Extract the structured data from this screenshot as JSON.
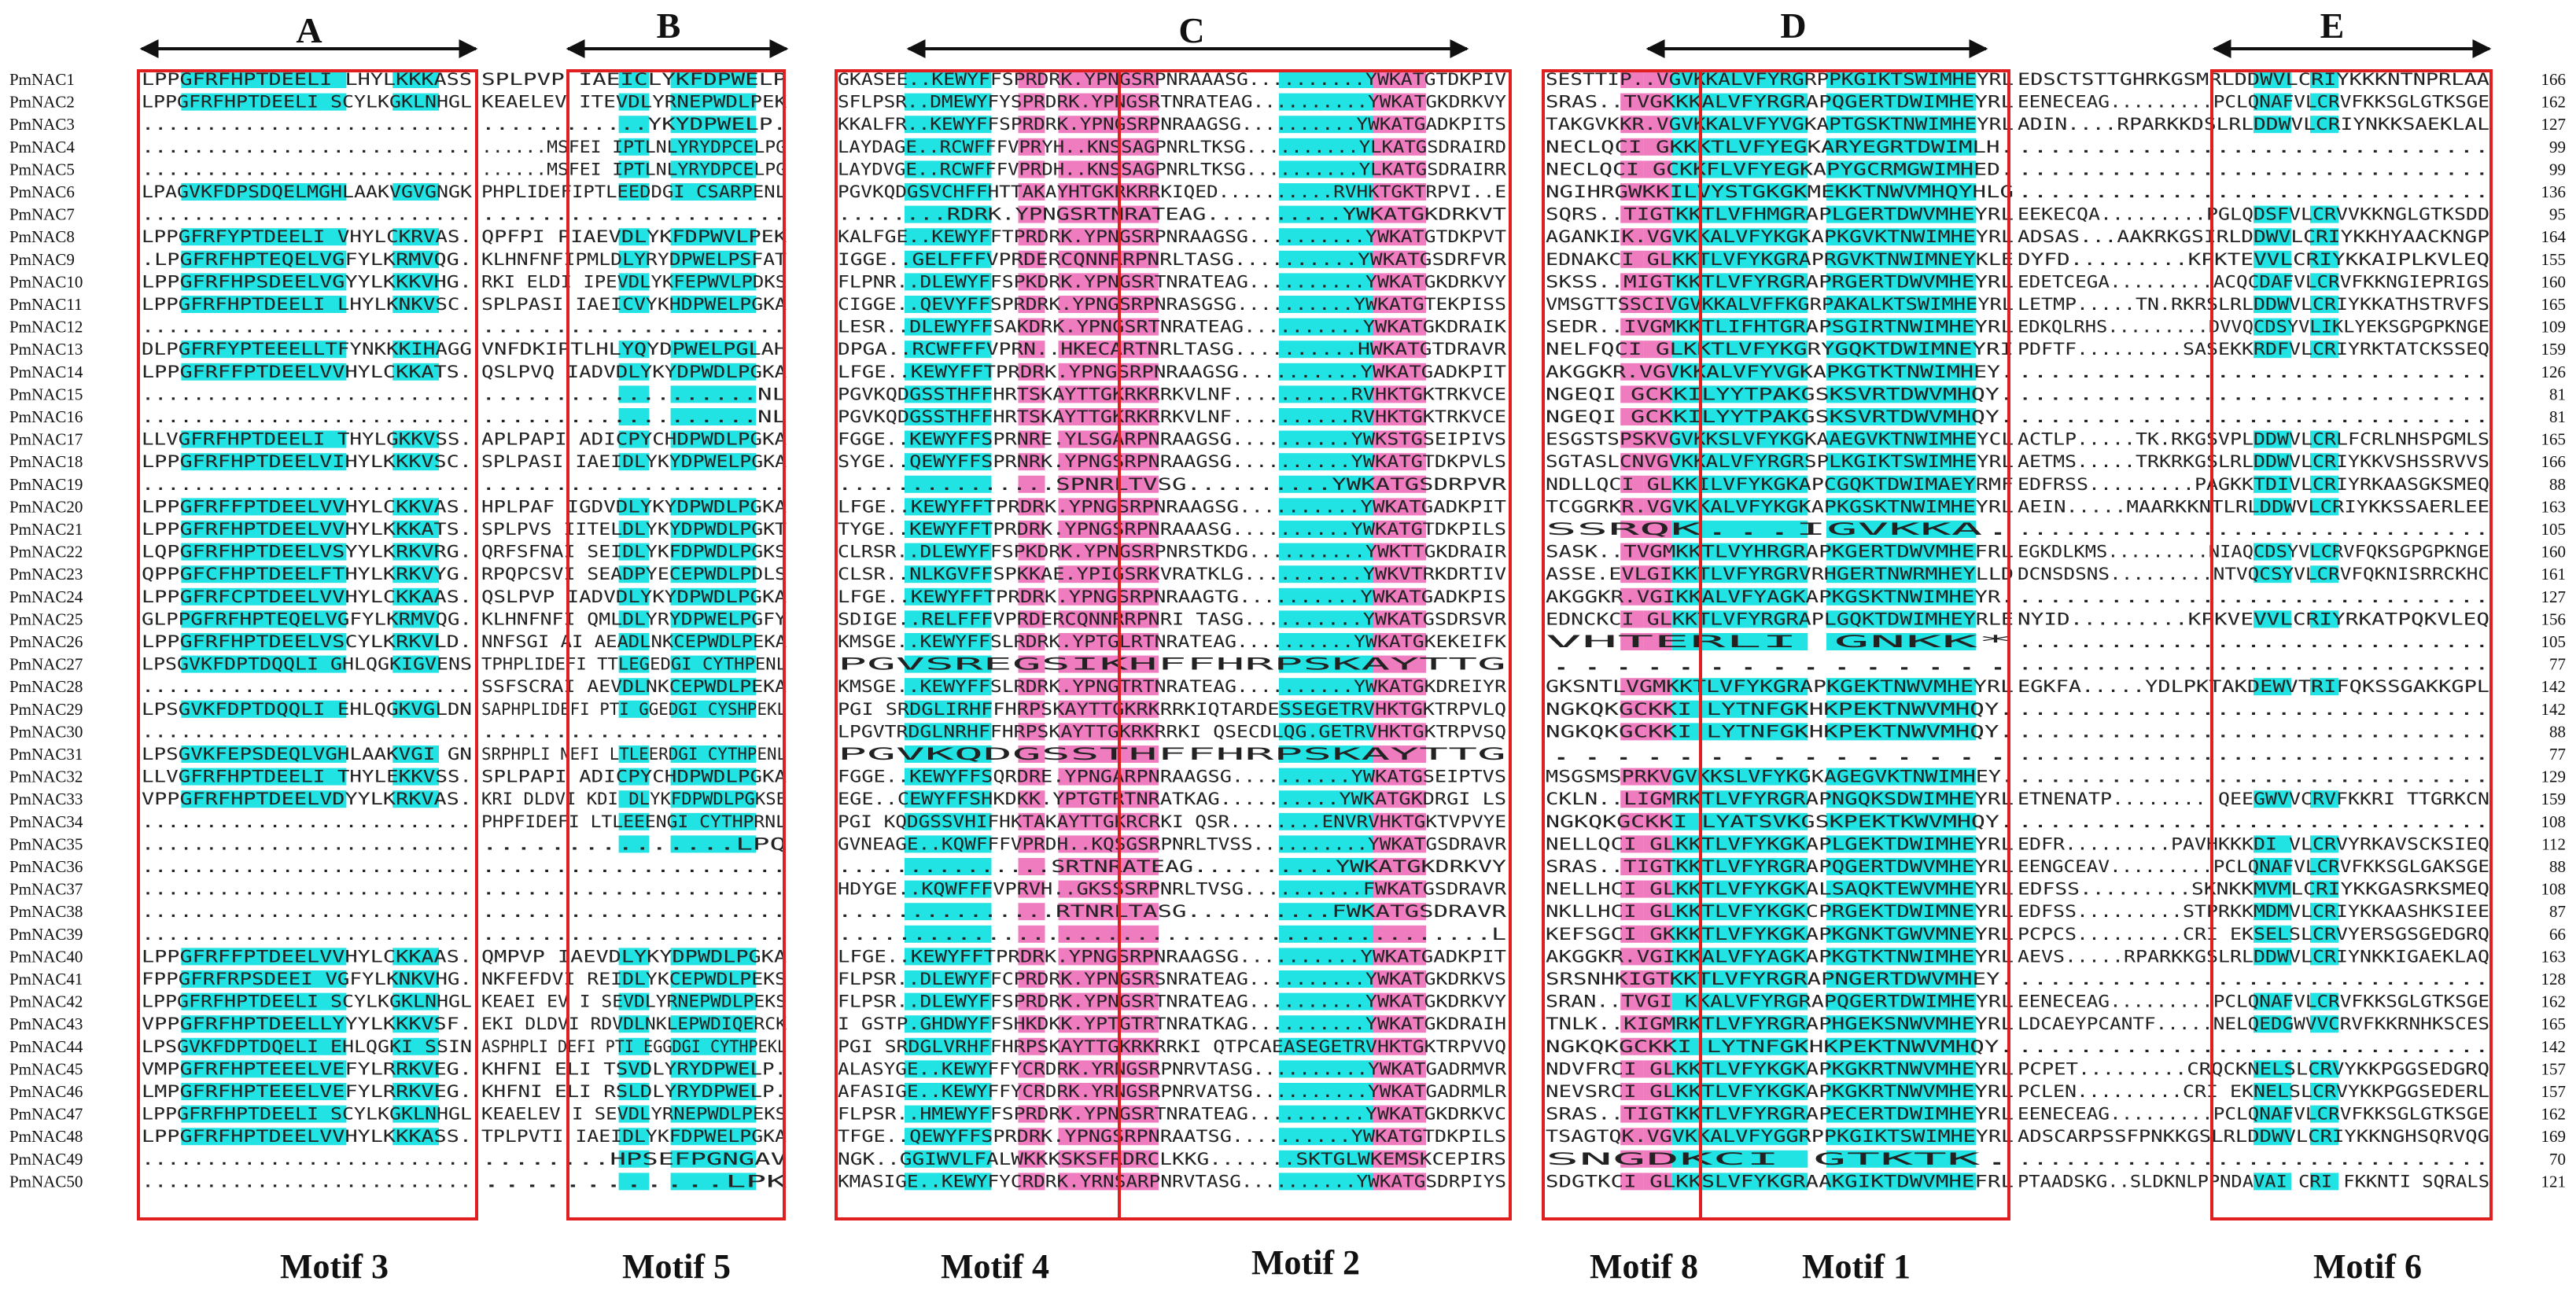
{
  "figure": {
    "colors": {
      "cyan": "#22e3e3",
      "pink": "#f07cc0",
      "box": "#e02020"
    },
    "regions": [
      {
        "id": "A",
        "label": "A"
      },
      {
        "id": "B",
        "label": "B"
      },
      {
        "id": "C",
        "label": "C"
      },
      {
        "id": "D",
        "label": "D"
      },
      {
        "id": "E",
        "label": "E"
      }
    ],
    "motifs": [
      {
        "id": "m3",
        "label": "Motif 3"
      },
      {
        "id": "m5",
        "label": "Motif 5"
      },
      {
        "id": "m4",
        "label": "Motif 4"
      },
      {
        "id": "m2",
        "label": "Motif 2"
      },
      {
        "id": "m8",
        "label": "Motif 8"
      },
      {
        "id": "m1",
        "label": "Motif 1"
      },
      {
        "id": "m6",
        "label": "Motif 6"
      }
    ],
    "sequences": [
      {
        "name": "PmNAC1",
        "len": "166",
        "a": "LPPGFRFHPTDEELI LHYLKKKASS",
        "b": "SPLPVP IAEICLYKFDPWELP",
        "c": "GKASEE..KEWYFFSPRDRK.YPNGSRPNRAAASG..........YWKATGTDKPIV",
        "d": "SESTTIP..VGVKKALVFYRGRPPKGIKTSWIMHEYRL",
        "e": "EDSCTSTTGHRKGSMRLDDWVLCRIYKKKNTNPRLAA"
      },
      {
        "name": "PmNAC2",
        "len": "162",
        "a": "LPPGFRFHPTDEELI SCYLKGKLNHGL",
        "b": "KEAELEV ITEVDLYRNEPWDLPEK",
        "c": "SFLPSR..DMEWYFYSPRDRK.YPNGSRTNRATEAG..........YWKATGKDRKVY",
        "d": "SRAS..TVGKKKALVFYRGRAPQGERTDWIMHEYRL",
        "e": "EENECEAG.........PCLQNAFVLCRVFKKSGLGTKSGE"
      },
      {
        "name": "PmNAC3",
        "len": "127",
        "a": "..........................",
        "b": "............YKYDPWELP.",
        "c": "KKALFR..KEWYFFSPRDRK.YPNGSRPNRAAGSG..........YWKATGADKPITS",
        "d": "TAKGVKKR.VGVKKALVFYVGKAPTGSKTNWIMHEYRL",
        "e": "ADIN....RPARKKDSLRLDDWVLCRIYNKKSAEKLAL"
      },
      {
        "name": "PmNAC4",
        "len": "99",
        "a": "..........................",
        "b": "......MSFEI IPTLNLYRYDPCELPG",
        "c": "LAYDAGE..RCWFFFVPRYH..KNSSAGPNRLTKSG..........YLKATGSDRAIRD",
        "d": "NECLQCI GKKKTLVFYEGKARYEGRTDWIMLH.",
        "e": "..............................."
      },
      {
        "name": "PmNAC5",
        "len": "99",
        "a": "..........................",
        "b": "......MSFEI IPTLNLYRYDPCELPG",
        "c": "LAYDVGE..RCWFFFVPRDH..KNSSAGPNRLTKSG..........YLKATGSDRAIRR",
        "d": "NECLQCI GCKKFLVFYEGKAPYGCRMGWIMHED.",
        "e": "..............................."
      },
      {
        "name": "PmNAC6",
        "len": "136",
        "a": "LPAGVKFDPSDQELMGHLAAKVGVGNGK",
        "b": "PHPLIDEFIPTLEEDDGI CSARPENL",
        "c": "PGVKQDGSVCHFFHTTAKAYHTGKRKRRKIQED..........RVHKTGKTRPVI..E",
        "d": "NGIHRGWKKILVYSTGKGKMEKKTNWVMHQYHLG",
        "e": "..............................."
      },
      {
        "name": "PmNAC7",
        "len": "95",
        "a": "..........................",
        "b": ".....................",
        "c": "........RDRK.YPNGSRTNRATEAG..........YWKATGKDRKVT",
        "d": "SQRS..TIGTKKTLVFHMGRAPLGERTDWVMHEYRL",
        "e": "EEKECQA.........PGLQDSFVLCRVVKKNGLGTKSDD"
      },
      {
        "name": "PmNAC8",
        "len": "164",
        "a": "LPPGFRFYPTDEELI VHYLCKRVAS.",
        "b": "QPFPI PIAEVDLYKFDPWVLPEK",
        "c": "KALFGE..KEWYFFTPRDRK.YPNGSRPNRAAGSG..........YWKATGTDKPVT",
        "d": "AGANKIK.VGVKKALVFYKGKAPKGVKTNWIMHEYRL",
        "e": "ADSAS...AAKRKGSIRLDDWVLCRIYKKHYAACKNGP"
      },
      {
        "name": "PmNAC9",
        "len": "155",
        "a": ".LPGFRFHPTEQELVGFYLKRMVQG.",
        "b": "KLHNFNFIPMLDLYRYDPWELPSFAT",
        "c": "IGGE..GELFFFVPRDERCQNNRRPNRLTASG..........YWKATGSDRFVR",
        "d": "EDNAKCI GLKKTLVFYKGRAPRGVKTNWIMNEYKLE",
        "e": "DYFD.........KPKTEVVLCRIYKKAIPLKVLEQ"
      },
      {
        "name": "PmNAC10",
        "len": "160",
        "a": "LPPGFRFHPSDEELVGYYLKKKVHG.",
        "b": "RKI ELDI IPEVDLYKFEPWVLPDKS",
        "c": "FLPNR..DLEWYFFSPKDRK.YPNGSRTNRATEAG..........YWKATGKDRKVY",
        "d": "SKSS..MIGTKKTLVFYRGRAPRGERTDWVMHEYRL",
        "e": "EDETCEGA.........ACQCDAFVLCRVFKKNGIEPRIGS"
      },
      {
        "name": "PmNAC11",
        "len": "165",
        "a": "LPPGFRFHPTDEELI LHYLKNKVSC.",
        "b": "SPLPASI IAEICVYKHDPWELPGKA",
        "c": "CIGGE..QEVYFFSPRDRK.YPNGSRPNRASGSG..........YWKATGTEKPISS",
        "d": "VMSGTTSSCIVGVKKALVFFKGRPAKALKTSWIMHEYRL",
        "e": "LETMP.....TN.RKRSLRLDDWVLCRIYKKATHSTRVFS"
      },
      {
        "name": "PmNAC12",
        "len": "109",
        "a": "..........................",
        "b": ".....................",
        "c": "LESR..DLEWYFFSAKDRK.YPNGSRTNRATEAG..........YWKATGKDRAIK",
        "d": "SEDR..IVGMKKTLIFHTGRAPSGIRTNWIMHEYRL",
        "e": "EDKQLRHS.........DVVQCDSYVLIKLYEKSGPGPKNGE"
      },
      {
        "name": "PmNAC13",
        "len": "159",
        "a": "DLPGFRFYPTEEELLTFYNKKKIHAGG",
        "b": "VNFDKIPTLHLYQYDPWELPGLAH",
        "c": "DPGA..RCWFFFVPRN..HKECARTNRLTASG..........HWKATGTDRAVR",
        "d": "NELFQCI GLKKTLVFYKGRYGQKTDWIMNEYRI",
        "e": "PDFTF.........SASEKKRDFVLCRIYRKTATCKSSEQ"
      },
      {
        "name": "PmNAC14",
        "len": "126",
        "a": "LPPGFRFFPTDEELVVHYLCKKATS.",
        "b": "QSLPVQ IADVDLYKYDPWDLPGKA",
        "c": "LFGE..KEWYFFTPRDRK.YPNGSRPNRAAGSG..........YWKATGADKPIT",
        "d": "AKGGKR.VGVKKALVFYVGKAPKGTKTNWIMHEY.",
        "e": "..............................."
      },
      {
        "name": "PmNAC15",
        "len": "81",
        "a": "..........................",
        "b": "...................NL",
        "c": "PGVKQDGSSTHFFHRTSKAYTTGKRKRRKVLNF..........RVHKTGKTRKVCE",
        "d": "NGEQI GCKKILYYTPAKGSKSVRTDWVMHQY.",
        "e": "..............................."
      },
      {
        "name": "PmNAC16",
        "len": "81",
        "a": "..........................",
        "b": "...................NL",
        "c": "PGVKQDGSSTHFFHRTSKAYTTGKRKRRKVLNF..........RVHKTGKTRKVCE",
        "d": "NGEQI GCKKILYYTPAKGSKSVRTDWVMHQY.",
        "e": "..............................."
      },
      {
        "name": "PmNAC17",
        "len": "165",
        "a": "LLVGFRFHPTDEELI THYLGKKVSS.",
        "b": "APLPAPI ADICPYCHDPWDLPGKA",
        "c": "FGGE..KEWYFFSPRNRE.YLSGARPNRAAGSG..........YWKSTGSEIPIVS",
        "d": "ESGSTSPSKVGVKKSLVFYKGKAAEGVKTNWIMHEYCL",
        "e": "ACTLP.....TK.RKGSVPLDDWVLCRLFCRLNHSPGMLS"
      },
      {
        "name": "PmNAC18",
        "len": "166",
        "a": "LPPGFRFHPTDEELVIHYLKKKVSC.",
        "b": "SPLPASI IAEIDLYKYDPWELPGKA",
        "c": "SYGE..QEWYFFSPRNRK.YPNGSRPNRAAGSG..........YWKATGTDKPVLS",
        "d": "SGTASLCNVGVKKALVFYRGRSPLKGIKTSWIMHEYRL",
        "e": "AETMS.....TRKRKGSLRLDDWVLCRIYKKVSHSSRVVS"
      },
      {
        "name": "PmNAC19",
        "len": "88",
        "a": "..........................",
        "b": ".....................",
        "c": "...............SPNRLTVSG..........YWKATGSDRPVR",
        "d": "NDLLQCI GLKKILVFYKGKAPCGQKTDWIMAEYRMF",
        "e": "EDFRSS.........PAGKKTDIVLCRIYRKAASGKSMEQ"
      },
      {
        "name": "PmNAC20",
        "len": "163",
        "a": "LPPGFRFFPTDEELVVHYLCKKVAS.",
        "b": "HPLPAF IGDVDLYKYDPWDLPGKA",
        "c": "LFGE..KEWYFFTPRDRK.YPNGSRPNRAAGSG..........YWKATGADKPIT",
        "d": "TCGGRKR.VGVKKALVFYKGKAPKGSKTNWIMHEYRL",
        "e": "AEIN.....MAARKKNTLRLDDWVLCRIYKKSSAERLEE"
      },
      {
        "name": "PmNAC21",
        "len": "105",
        "a": "LPPGFRFHPTDEELVVHYLKKKATS.",
        "b": "SPLPVS IITELDLYKYDPWDLPGKT",
        "c": "TYGE..KEWYFFTPRDRK.YPNGSRPNRAAASG..........YWKATGTDKPILS",
        "d": "SSRQK...IGVKKA.",
        "e": "..............................."
      },
      {
        "name": "PmNAC22",
        "len": "160",
        "a": "LQPGFRFHPTDEELVSYYLKRKVRG.",
        "b": "QRFSFNAI SEIDLYKFDPWDLPGKS",
        "c": "CLRSR..DLEWYFFSPKDRK.YPNGSRPNRSTKDG..........YWKTTGKDRAIR",
        "d": "SASK..TVGMKKTLVYHRGRAPKGERTDWVMHEFRL",
        "e": "EGKDLKMS.........NIAQCDSYVLCRVFQKSGPGPKNGE"
      },
      {
        "name": "PmNAC23",
        "len": "161",
        "a": "QPPGFCFHPTDEELFTHYLKRKVYG.",
        "b": "RPQPCSVI SEADPYECEPWDLPDLS",
        "c": "CLSR..NLKGVFFSPKKAE.YPIGSRKVRATKLG..........YWKVTRKDRTIV",
        "d": "ASSE.EVLGIKKTLVFYRGRVRHGERTNWRMHEYLLD",
        "e": "DCNSDSNS.........NTVQCSYVLCRVFQKNISRRCKHC"
      },
      {
        "name": "PmNAC24",
        "len": "127",
        "a": "LPPGFRFCPTDEELVVHYLCKKAAS.",
        "b": "QSLPVP IADVDLYKYDPWDLPGKA",
        "c": "LFGE..KEWYFFTPRDRK.YPNGSRPNRAAGTG..........YWKATGADKPIS",
        "d": "AKGGKR.VGIKKALVFYAGKAPKGSKTNWIMHEYR.",
        "e": "..............................."
      },
      {
        "name": "PmNAC25",
        "len": "156",
        "a": "GLPPGFRFHPTEQELVGFYLKRMVQG.",
        "b": "KLHNFNFI QMLDLYRYDPWELPGFY",
        "c": "SDIGE..RELFFFVPRDERCQNNRRPNRI TASG..........YWKATGSDRSVR",
        "d": "EDNCKCI GLKKTLVFYRGRAPLGQKTDWIMHEYRLE",
        "e": "NYID.........KPKVEVVLCRIYRKATPQKVLEQ"
      },
      {
        "name": "PmNAC26",
        "len": "105",
        "a": "LPPGFRFHPTDEELVSCYLKRKVLD.",
        "b": "NNFSGI AI AEADLNKCEPWDLPEKA",
        "c": "KMSGE..KEWYFFSLRDRK.YPTGLRTNRATEAG..........YWKATGKEKEIFK",
        "d": "VHTERLI GNKK*",
        "e": "..............................."
      },
      {
        "name": "PmNAC27",
        "len": "77",
        "a": "LPSGVKFDPTDQQLI GHLQGKIGVENS",
        "b": "TPHPLIDEFI TTLEGEDGI CYTHPENL",
        "c": "PGVSREGSIKHFFHRPSKAYTTG",
        "d": "...............",
        "e": "..............................."
      },
      {
        "name": "PmNAC28",
        "len": "142",
        "a": "..........................",
        "b": "SSFSCRAI AEVDLNKCEPWDLPEKA",
        "c": "KMSGE..KEWYFFSLRDRK.YPNGTRTNRATEAG..........YWKATGKDREIYR",
        "d": "GKSNTLVGMKKTLVFYKGRAPKGEKTNWVMHEYRL",
        "e": "EGKFA.....YDLPKTAKDEWVTRIFQKSSGAKKGPL"
      },
      {
        "name": "PmNAC29",
        "len": "142",
        "a": "LPSGVKFDPTDQQLI EHLQGKVGLDN",
        "b": "SAPHPLIDEFI PTI GGEDGI CYSHPEKL",
        "c": "PGI SRDGLIRHFFHRPSKAYTTGKRKRRKIQTARDESSEGETRVHKTGKTRPVLQ",
        "d": "NGKQKGCKKI LYTNFGKHKPEKTNWVMHQY.",
        "e": "..............................."
      },
      {
        "name": "PmNAC30",
        "len": "88",
        "a": "..........................",
        "b": ".....................",
        "c": "LPGVTRDGLNRHFFHRPSKAYTTGKRKRRKI QSECDLQG.GETRVHKTGKTRPVSQ",
        "d": "NGKQKGCKKI LYTNFGKHKPEKTNWVMHQY.",
        "e": "..............................."
      },
      {
        "name": "PmNAC31",
        "len": "77",
        "a": "LPSGVKFEPSDEQLVGHLAAKVGI GN",
        "b": "SRPHPLI NEFI LTLEERDGI CYTHPENL",
        "c": "PGVKQDGSSTHFFHRPSKAYTTG",
        "d": "...............",
        "e": "..............................."
      },
      {
        "name": "PmNAC32",
        "len": "129",
        "a": "LLVGFRFHPTDEELI THYLEKKVSS.",
        "b": "SPLPAPI ADICPYCHDPWDLPGKA",
        "c": "FGGE..KEWYFFSQRDRE.YPNGARPNRAAGSG..........YWKATGSEIPTVS",
        "d": "MSGSMSPRKVGVKKSLVFYKGKAGEGVKTNWIMHEY.",
        "e": "..............................."
      },
      {
        "name": "PmNAC33",
        "len": "159",
        "a": "VPPGFRFHPTDEELVDYYLKRKVAS.",
        "b": "KRI DLDVI KDI DLYKFDPWDLPGKSE",
        "c": "EGE..CEWYFFSHKDKK.YPTGTRTNRATKAG..........YWKATGKDRGI LS",
        "d": "CKLN..LIGMRKTLVFYRGRAPNGQKSDWIMHEYRL",
        "e": "ETNENATP.........QEEGWVVCRVFKKRI TTGRKCN"
      },
      {
        "name": "PmNAC34",
        "len": "108",
        "a": "..........................",
        "b": "PHPFIDEFI LTLEEENGI CYTHPRNL",
        "c": "PGI KQDGSSVHIFHKTAKAYTTGKRCRKI QSR........ENVRVHKTGKTVPVYE",
        "d": "NGKQKGCKKI LYATSVKGSKPEKTKWVMHQY.",
        "e": "..............................."
      },
      {
        "name": "PmNAC35",
        "len": "112",
        "a": "..........................",
        "b": "...............LPQ",
        "c": "GVNEAGE..KQWFFFVPRDH..KQSGSRPNRLTVSS..........YWKATGSDRAVR",
        "d": "NELLQCI GLKKTLVFYKGKAPLGEKTDWIMHEYRL",
        "e": "EDFR.........PAVHKKKDI VLCRVYRKAVSCKSIEQ"
      },
      {
        "name": "PmNAC36",
        "len": "88",
        "a": "..........................",
        "b": ".....................",
        "c": "...............SRTNRATEAG..........YWKATGKDRKVY",
        "d": "SRAS..TIGTKKTLVFYRGRAPQGERTDWVMHEYRL",
        "e": "EENGCEAV.........PCLQNAFVLCRVFKKSGLGAKSGE"
      },
      {
        "name": "PmNAC37",
        "len": "108",
        "a": "..........................",
        "b": ".....................",
        "c": "HDYGE..KQWFFFVPRVH..GKSSSRPNRLTVSG..........FWKATGSDRAVR",
        "d": "NELLHCI GLKKTLVFYKGKALSAQKTEWVMHEYRL",
        "e": "EDFSS.........SKNKKMVMLCRIYKKGASRKSMEQ"
      },
      {
        "name": "PmNAC38",
        "len": "87",
        "a": "..........................",
        "b": ".....................",
        "c": "...............RTNRLTASG..........FWKATGSDRAVR",
        "d": "NKLLHCI GLKKTLVFYKGKCPRGEKTDWIMNEYRL",
        "e": "EDFSS.........STPRKKMDMVLCRIYKKAASHKSIEE"
      },
      {
        "name": "PmNAC39",
        "len": "66",
        "a": "..........................",
        "b": ".....................",
        "c": "............................................L",
        "d": "KEFSGCI GKKKTLVFYKGKAPKGNKTGWVMNEYRL",
        "e": "PCPCS.........CRI EKSELSLCRVYERSGSGEDGRQ"
      },
      {
        "name": "PmNAC40",
        "len": "163",
        "a": "LPPGFRFFPTDEELVVHYLCKKAAS.",
        "b": "QMPVP IAEVDLYKYDPWDLPGKA",
        "c": "LFGE..KEWYFFTPRDRK.YPNGSRPNRAAGSG..........YWKATGADKPIT",
        "d": "AKGGKR.VGIKKALVFYAGKAPKGTKTNWIMHEYRL",
        "e": "AEVS.....RPARKKGSLRLDDWVLCRIYNKKIGAEKLAQ"
      },
      {
        "name": "PmNAC41",
        "len": "128",
        "a": "FPPGFRFRPSDEEI VGFYLKNKVHG.",
        "b": "NKFEFDVI REIDLYKCEPWDLPEKS",
        "c": "FLPSR..DLEWYFFCPRDRK.YPNGSRSNRATEAG..........YWKATGKDRKVS",
        "d": "SRSNHKIGTKKTLVFYRGRAPNGERTDWVMHEY.",
        "e": "..............................."
      },
      {
        "name": "PmNAC42",
        "len": "162",
        "a": "LPPGFRFHPTDEELI SCYLKGKLNHGL",
        "b": "KEAEI EV I SEVDLYRNEPWDLPEKS",
        "c": "FLPSR..DLEWYFFSPRDRK.YPNGSRTNRATEAG..........YWKATGKDRKVY",
        "d": "SRAN..TVGI KKALVFYRGRAPQGERTDWIMHEYRL",
        "e": "EENECEAG.........PCLQNAFVLCRVFKKSGLGTKSGE"
      },
      {
        "name": "PmNAC43",
        "len": "165",
        "a": "VPPGFRFHPTDEELLYYYLKKKVSF.",
        "b": "EKI DLDVI RDVDLNKLEPWDIQERCK",
        "c": "I GSTP.GHDWYFFSHKDKK.YPTGTRTNRATKAG..........YWKATGKDRAIH",
        "d": "TNLK..KIGMRKTLVFYRGRAPHGEKSNWVMHEYRL",
        "e": "LDCAEYPCANTF.....NELQEDGWVVCRVFKKRNHKSCES"
      },
      {
        "name": "PmNAC44",
        "len": "142",
        "a": "LPSGVKFDPTDQELI EHLQGKI SSIN",
        "b": "ASPHPLI DEFI PTI EGGDGI CYTHPEKL",
        "c": "PGI SRDGLVRHFFHRPSKAYTTGKRKRRKI QTPCAEASEGETRVHKTGKTRPVVQ",
        "d": "NGKQKGCKKI LYTNFGKHKPEKTNWVMHQY.",
        "e": "..............................."
      },
      {
        "name": "PmNAC45",
        "len": "157",
        "a": "VMPGFRFHPTEEELVEFYLRRKVEG.",
        "b": "KHFNI ELI TSVDLYRYDPWELP.",
        "c": "ALASYGE..KEWYFFYCRDRK.YRNGSRPNRVTASG..........YWKATGADRMVR",
        "d": "NDVFRCI GLKKTLVFYKGKAPKGKRTNWVMHEYRL",
        "e": "PCPET.........CRQCKNELSLCRVYKKPGGSEDGRQ"
      },
      {
        "name": "PmNAC46",
        "len": "157",
        "a": "LMPGFRFHPTEEELVEFYLRRKVEG.",
        "b": "KHFNI ELI RSLDLYRYDPWELP.",
        "c": "AFASIGE..KEWYFFYCRDRK.YRNGSRPNRVATSG..........YWKATGADRMLR",
        "d": "NEVSRCI GLKKTLVFYKGKAPKGKRTNWVMHEYRL",
        "e": "PCLEN.........CRI EKNELSLCRVYKKPGGSEDERL"
      },
      {
        "name": "PmNAC47",
        "len": "162",
        "a": "LPPGFRFHPTDEELI SCYLKGKLNHGL",
        "b": "KEAELEV I SEVDLYRNEPWDLPEKS",
        "c": "FLPSR..HMEWYFFSPRDRK.YPNGSRTNRATEAG..........YWKATGKDRKVC",
        "d": "SRAS..TIGTKKTLVFYRGRAPECERTDWIMHEYRL",
        "e": "EENECEAG.........PCLQNAFVLCRVFKKSGLGTKSGE"
      },
      {
        "name": "PmNAC48",
        "len": "169",
        "a": "LPPGFRFHPTDEELVVHYLKKKASS.",
        "b": "TPLPVTI IAEIDLYKFDPWELPGKA",
        "c": "TFGE..QEWYFFSPRDRK.YPNGSRPNRAATSG..........YWKATGTDKPILS",
        "d": "TSAGTQK.VGVKKALVFYGGRPPKGIKTSWIMHEYRL",
        "e": "ADSCARPSSFPNKKGSLRLDDWVLCRIYKKNGHSQRVQG"
      },
      {
        "name": "PmNAC49",
        "len": "70",
        "a": "..........................",
        "b": "........HPSEFPGNGAV",
        "c": "NGK..GGIWVLFALWKKKSKSFRDRCLKKG.......SKTGLWKEMSKCEPIRS",
        "d": "SNGDKCI GTKTK.",
        "e": "..............................."
      },
      {
        "name": "PmNAC50",
        "len": "121",
        "a": "..........................",
        "b": "............LPK",
        "c": "KMASIGE..KEWYFYCRDRK.YRNSARPNRVTASG..........YWKATGSDRPIYS",
        "d": "SDGTKCI GLKKSLVFYKGRAAKGIKTDWVMHEFRL",
        "e": "PTAADSKG..SLDKNLPPNDAVAI CRI FKKNTI SQRALS"
      }
    ]
  }
}
